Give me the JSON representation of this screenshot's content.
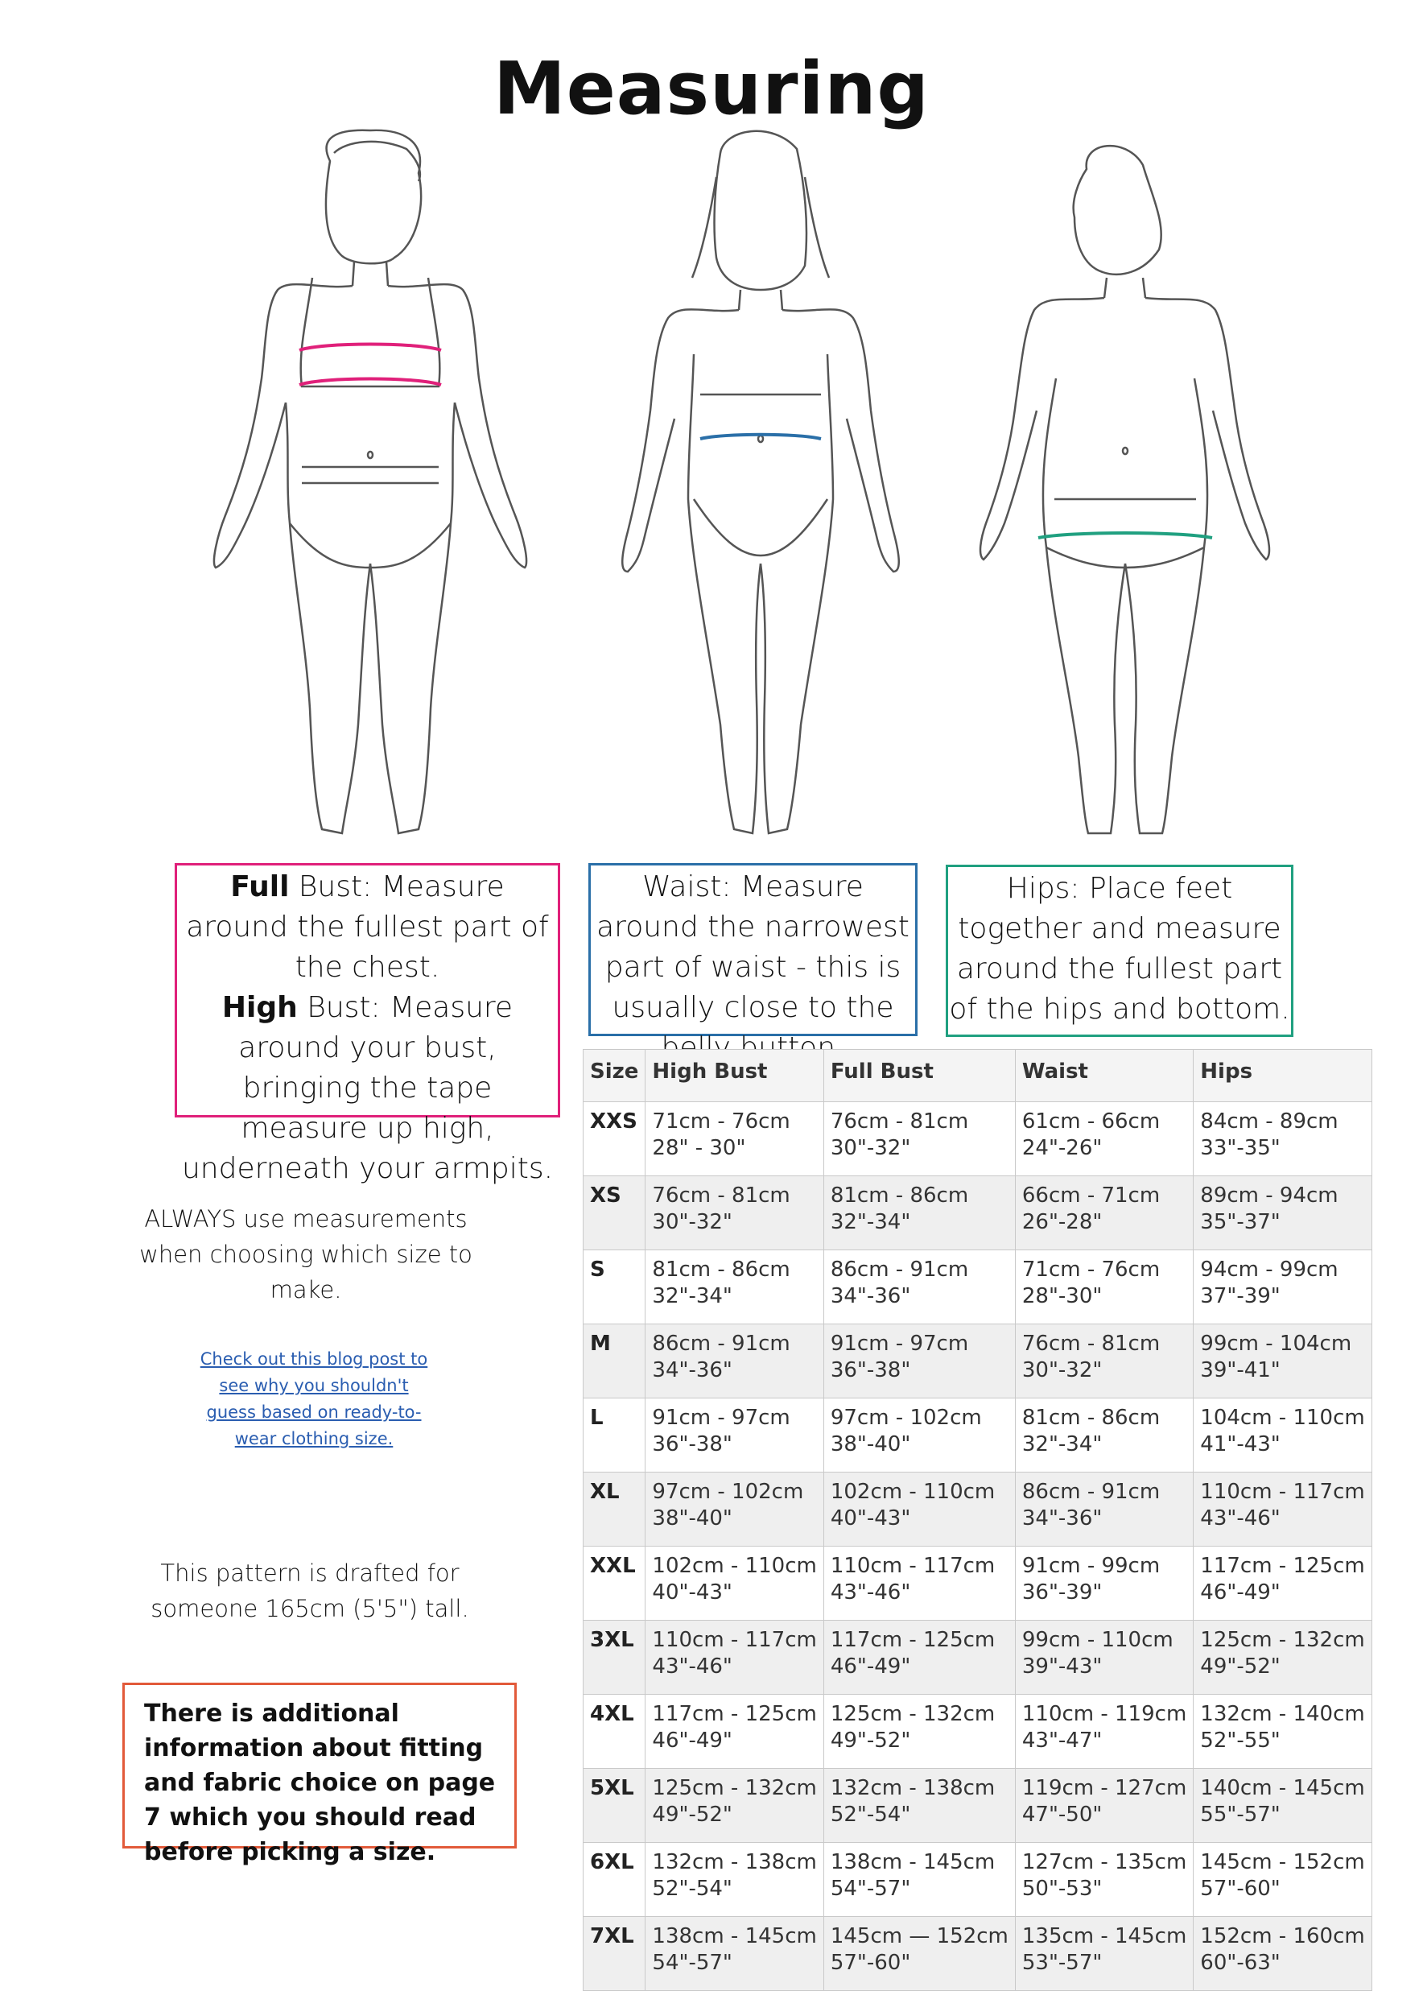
{
  "title": "Measuring",
  "bust_box": {
    "full_bold": "Full",
    "full_text": " Bust: Measure around the fullest part of the chest.",
    "high_bold": "High",
    "high_text": " Bust: Measure around your bust, bringing the tape measure up high, underneath your armpits."
  },
  "waist_box": {
    "text": "Waist: Measure around the narrowest part of waist - this is usually close to the belly button."
  },
  "hips_box": {
    "text": "Hips: Place feet together and measure around the fullest part of the hips and bottom."
  },
  "always_text": "ALWAYS use measurements when choosing which size to make.",
  "blog_link": "Check out this blog post to see why you shouldn't guess based on ready-to-wear clothing size.",
  "pattern_text": "This pattern is drafted for someone 165cm (5'5\") tall.",
  "note_text": "There is additional information about fitting and fabric choice on page 7 which you should read before picking a size.",
  "colors": {
    "bust": "#e0207a",
    "waist": "#2a6fa8",
    "hips": "#20a080",
    "note": "#e25a3a",
    "link": "#2a5db0"
  },
  "table": {
    "headers": [
      "Size",
      "High Bust",
      "Full Bust",
      "Waist",
      "Hips"
    ],
    "rows": [
      [
        "XXS",
        "71cm - 76cm",
        "28\" - 30\"",
        "76cm - 81cm",
        "30\"-32\"",
        "61cm - 66cm",
        "24\"-26\"",
        "84cm - 89cm",
        "33\"-35\""
      ],
      [
        "XS",
        "76cm - 81cm",
        "30\"-32\"",
        "81cm - 86cm",
        "32\"-34\"",
        "66cm - 71cm",
        "26\"-28\"",
        "89cm - 94cm",
        "35\"-37\""
      ],
      [
        "S",
        "81cm - 86cm",
        "32\"-34\"",
        "86cm - 91cm",
        "34\"-36\"",
        "71cm - 76cm",
        "28\"-30\"",
        "94cm - 99cm",
        "37\"-39\""
      ],
      [
        "M",
        "86cm - 91cm",
        "34\"-36\"",
        "91cm - 97cm",
        "36\"-38\"",
        "76cm - 81cm",
        "30\"-32\"",
        "99cm - 104cm",
        "39\"-41\""
      ],
      [
        "L",
        "91cm - 97cm",
        "36\"-38\"",
        "97cm - 102cm",
        "38\"-40\"",
        "81cm - 86cm",
        "32\"-34\"",
        "104cm - 110cm",
        "41\"-43\""
      ],
      [
        "XL",
        "97cm - 102cm",
        "38\"-40\"",
        "102cm - 110cm",
        "40\"-43\"",
        "86cm - 91cm",
        "34\"-36\"",
        "110cm - 117cm",
        "43\"-46\""
      ],
      [
        "XXL",
        "102cm - 110cm",
        "40\"-43\"",
        "110cm - 117cm",
        "43\"-46\"",
        "91cm - 99cm",
        "36\"-39\"",
        "117cm - 125cm",
        "46\"-49\""
      ],
      [
        "3XL",
        "110cm - 117cm",
        "43\"-46\"",
        "117cm - 125cm",
        "46\"-49\"",
        "99cm - 110cm",
        "39\"-43\"",
        "125cm - 132cm",
        "49\"-52\""
      ],
      [
        "4XL",
        "117cm - 125cm",
        "46\"-49\"",
        "125cm - 132cm",
        "49\"-52\"",
        "110cm - 119cm",
        "43\"-47\"",
        "132cm - 140cm",
        "52\"-55\""
      ],
      [
        "5XL",
        "125cm - 132cm",
        "49\"-52\"",
        "132cm - 138cm",
        "52\"-54\"",
        "119cm - 127cm",
        "47\"-50\"",
        "140cm - 145cm",
        "55\"-57\""
      ],
      [
        "6XL",
        "132cm - 138cm",
        "52\"-54\"",
        "138cm - 145cm",
        "54\"-57\"",
        "127cm - 135cm",
        "50\"-53\"",
        "145cm - 152cm",
        "57\"-60\""
      ],
      [
        "7XL",
        "138cm - 145cm",
        "54\"-57\"",
        "145cm — 152cm",
        "57\"-60\"",
        "135cm - 145cm",
        "53\"-57\"",
        "152cm - 160cm",
        "60\"-63\""
      ]
    ]
  }
}
